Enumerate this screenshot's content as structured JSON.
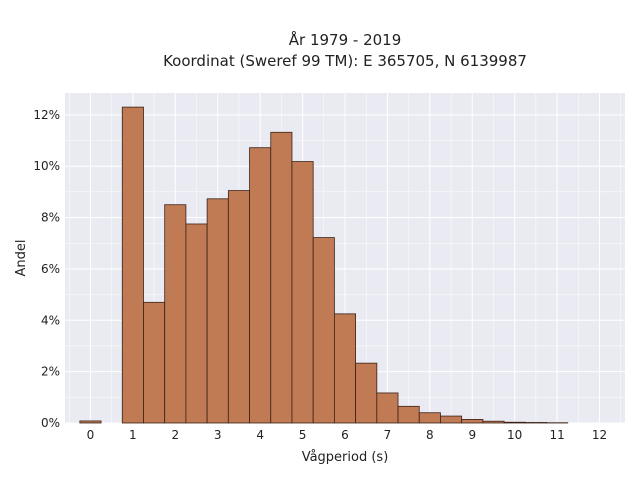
{
  "chart_data": {
    "type": "bar",
    "title": "År 1979 - 2019",
    "subtitle": "Koordinat (Sweref 99 TM): E 365705, N 6139987",
    "xlabel": "Vågperiod (s)",
    "ylabel": "Andel",
    "bin_width": 0.5,
    "x": [
      0,
      1,
      1.5,
      2,
      2.5,
      3,
      3.5,
      4,
      4.5,
      5,
      5.5,
      6,
      6.5,
      7,
      7.5,
      8,
      8.5,
      9,
      9.5,
      10,
      10.5,
      11
    ],
    "values": [
      0.08,
      12.3,
      4.7,
      8.5,
      7.75,
      8.73,
      9.05,
      10.72,
      11.32,
      10.18,
      7.22,
      4.25,
      2.33,
      1.17,
      0.65,
      0.4,
      0.27,
      0.14,
      0.07,
      0.03,
      0.02,
      0.01
    ],
    "xlim": [
      -0.6,
      12.6
    ],
    "ylim": [
      0,
      12.85
    ],
    "xticks": [
      0,
      1,
      2,
      3,
      4,
      5,
      6,
      7,
      8,
      9,
      10,
      11,
      12
    ],
    "yticks": [
      0,
      2,
      4,
      6,
      8,
      10,
      12
    ],
    "ytick_labels": [
      "0%",
      "2%",
      "4%",
      "6%",
      "8%",
      "10%",
      "12%"
    ],
    "grid": true,
    "colors": {
      "bar": "#c07a54",
      "edge": "#3a2216",
      "plot_bg": "#eaeaf2",
      "grid": "#ffffff"
    }
  }
}
